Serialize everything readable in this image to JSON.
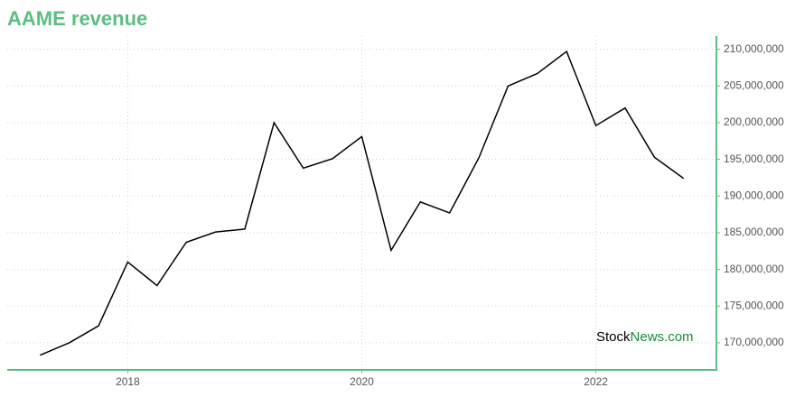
{
  "chart_data": {
    "type": "line",
    "title": "AAME revenue",
    "x": [
      2017.25,
      2017.5,
      2017.75,
      2018,
      2018.25,
      2018.5,
      2018.75,
      2019,
      2019.25,
      2019.5,
      2019.75,
      2020,
      2020.25,
      2020.5,
      2020.75,
      2021,
      2021.25,
      2021.5,
      2021.75,
      2022,
      2022.25,
      2022.5,
      2022.75
    ],
    "series": [
      {
        "color": "#000000",
        "values": [
          168300000,
          170000000,
          172300000,
          181000000,
          177800000,
          183700000,
          185100000,
          185500000,
          200000000,
          193800000,
          195100000,
          198100000,
          182600000,
          189200000,
          187700000,
          195200000,
          205000000,
          206700000,
          209700000,
          199600000,
          202000000,
          195300000,
          192400000
        ]
      }
    ],
    "xlim": [
      2016.97,
      2023.03
    ],
    "xticks": [
      2018,
      2020,
      2022
    ],
    "ylim": [
      166300000,
      211800000
    ],
    "yticks": [
      {
        "value": 170000000,
        "label": "170,000,000"
      },
      {
        "value": 175000000,
        "label": "175,000,000"
      },
      {
        "value": 180000000,
        "label": "180,000,000"
      },
      {
        "value": 185000000,
        "label": "185,000,000"
      },
      {
        "value": 190000000,
        "label": "190,000,000"
      },
      {
        "value": 195000000,
        "label": "195,000,000"
      },
      {
        "value": 200000000,
        "label": "200,000,000"
      },
      {
        "value": 205000000,
        "label": "205,000,000"
      },
      {
        "value": 210000000,
        "label": "210,000,000"
      }
    ],
    "grid": true,
    "axis_color": "#5bbf7f",
    "watermark": [
      "Stock",
      "News.com"
    ]
  }
}
